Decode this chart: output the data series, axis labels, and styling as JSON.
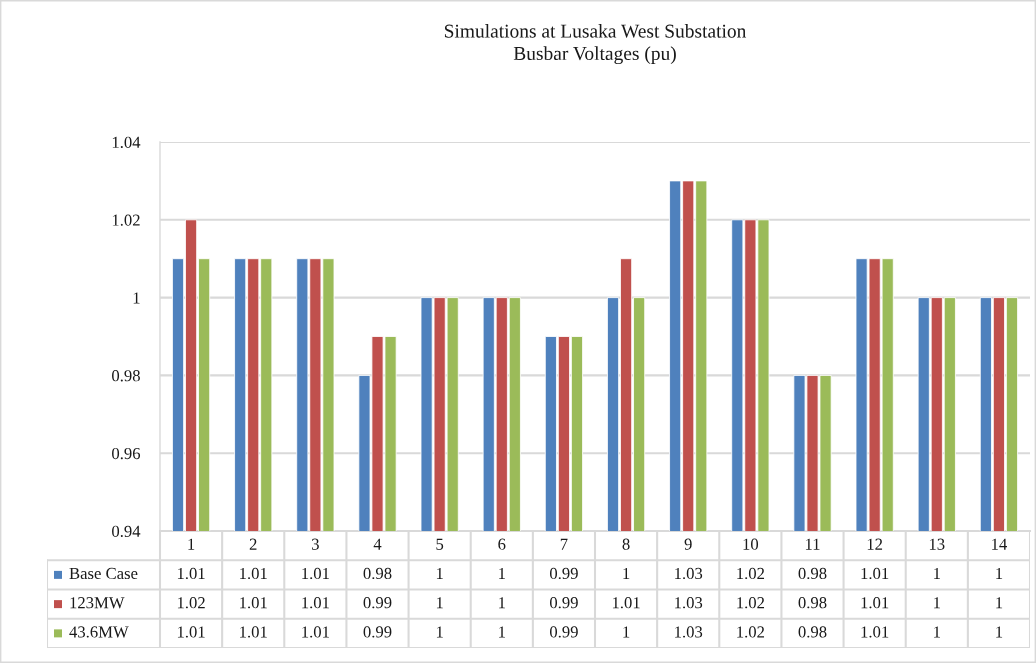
{
  "chart_data": {
    "type": "bar",
    "title": "Simulations at Lusaka West Substation\nBusbar Voltages (pu)",
    "categories": [
      "1",
      "2",
      "3",
      "4",
      "5",
      "6",
      "7",
      "8",
      "9",
      "10",
      "11",
      "12",
      "13",
      "14"
    ],
    "series": [
      {
        "name": "Base Case",
        "color": "#4f81bd",
        "values": [
          1.01,
          1.01,
          1.01,
          0.98,
          1,
          1,
          0.99,
          1,
          1.03,
          1.02,
          0.98,
          1.01,
          1,
          1
        ]
      },
      {
        "name": "123MW",
        "color": "#c0504d",
        "values": [
          1.02,
          1.01,
          1.01,
          0.99,
          1,
          1,
          0.99,
          1.01,
          1.03,
          1.02,
          0.98,
          1.01,
          1,
          1
        ]
      },
      {
        "name": "43.6MW",
        "color": "#9bbb59",
        "values": [
          1.01,
          1.01,
          1.01,
          0.99,
          1,
          1,
          0.99,
          1,
          1.03,
          1.02,
          0.98,
          1.01,
          1,
          1
        ]
      }
    ],
    "ylim": [
      0.94,
      1.04
    ],
    "yticks": [
      0.94,
      0.96,
      0.98,
      1,
      1.02,
      1.04
    ],
    "grid": "y",
    "legend": "bottom",
    "data_labels": true
  }
}
